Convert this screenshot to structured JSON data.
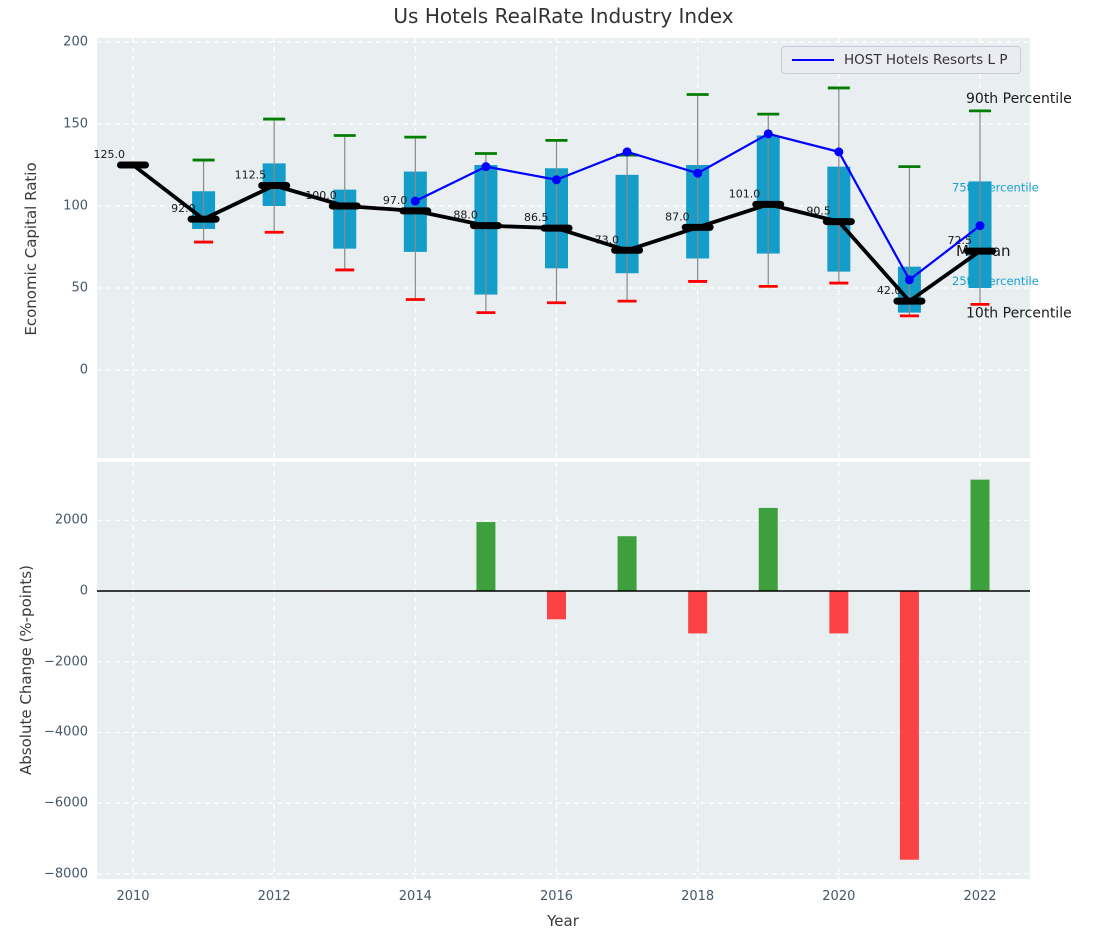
{
  "title": "Us Hotels RealRate Industry Index",
  "legend": {
    "label": "HOST Hotels Resorts L P"
  },
  "colors": {
    "axes_background": "#e9eef1",
    "grid": "#ffffff",
    "box_fill": "#159dc9",
    "whisker_line": "#8a8a8a",
    "p90_cap": "#007d00",
    "p10_cap": "#ff0000",
    "median": "#000000",
    "host_line": "#0000ff",
    "bar_positive": "#3da03d",
    "bar_negative": "#fb4244",
    "cyan_label": "#17a0cd",
    "black_label": "#1a1a1a",
    "tick_text": "#44576b"
  },
  "chart_data": [
    {
      "type": "box",
      "title": "Us Hotels RealRate Industry Index",
      "ylabel": "Economic Capital Ratio",
      "x": [
        2010,
        2011,
        2012,
        2013,
        2014,
        2015,
        2016,
        2017,
        2018,
        2019,
        2020,
        2021,
        2022
      ],
      "xticks": [
        [
          2010,
          "2010"
        ],
        [
          2012,
          "2012"
        ],
        [
          2014,
          "2014"
        ],
        [
          2016,
          "2016"
        ],
        [
          2018,
          "2018"
        ],
        [
          2020,
          "2020"
        ],
        [
          2022,
          "2022"
        ]
      ],
      "yticks": [
        [
          200,
          "200"
        ],
        [
          150,
          "150"
        ],
        [
          100,
          "100"
        ],
        [
          50,
          "50"
        ],
        [
          0,
          "0"
        ]
      ],
      "ylim": [
        -53.7,
        202.4
      ],
      "grid": true,
      "legend_position": "upper right",
      "median": [
        125.0,
        92.0,
        112.5,
        100.0,
        97.0,
        88.0,
        86.5,
        73.0,
        87.0,
        101.0,
        90.5,
        42.0,
        72.5
      ],
      "median_labels": [
        "125.0",
        "92.0",
        "112.5",
        "100.0",
        "97.0",
        "88.0",
        "86.5",
        "73.0",
        "87.0",
        "101.0",
        "90.5",
        "42.0",
        "72.5"
      ],
      "q1": [
        null,
        86,
        100,
        74,
        72,
        46,
        62,
        59,
        68,
        71,
        60,
        35,
        50
      ],
      "q3": [
        null,
        109,
        126,
        110,
        121,
        125,
        123,
        119,
        125,
        143,
        124,
        63,
        115
      ],
      "p10": [
        null,
        78,
        84,
        61,
        43,
        35,
        41,
        42,
        54,
        51,
        53,
        33,
        40
      ],
      "p90": [
        null,
        128,
        153,
        143,
        142,
        132,
        140,
        131,
        168,
        156,
        172,
        124,
        158
      ],
      "series": [
        {
          "name": "HOST Hotels Resorts L P",
          "values": [
            null,
            null,
            null,
            null,
            103,
            124,
            116,
            133,
            120,
            144,
            133,
            55,
            88
          ]
        }
      ],
      "right_labels": [
        {
          "text": "90th Percentile",
          "value": 166,
          "style": "black",
          "x": 966
        },
        {
          "text": "75th Percentile",
          "value": 112,
          "style": "cyan",
          "x": 952
        },
        {
          "text": "Median",
          "value": 72.5,
          "style": "black",
          "x": 956
        },
        {
          "text": "25th Percentile",
          "value": 55,
          "style": "cyan",
          "x": 952
        },
        {
          "text": "10th Percentile",
          "value": 35,
          "style": "black",
          "x": 966
        }
      ]
    },
    {
      "type": "bar",
      "ylabel": "Absolute Change (%-points)",
      "xlabel": "Year",
      "x": [
        2010,
        2011,
        2012,
        2013,
        2014,
        2015,
        2016,
        2017,
        2018,
        2019,
        2020,
        2021,
        2022
      ],
      "values": [
        null,
        null,
        null,
        null,
        null,
        1950,
        -800,
        1550,
        -1200,
        2350,
        -1200,
        -7600,
        3150
      ],
      "xticks": [
        [
          2010,
          "2010"
        ],
        [
          2012,
          "2012"
        ],
        [
          2014,
          "2014"
        ],
        [
          2016,
          "2016"
        ],
        [
          2018,
          "2018"
        ],
        [
          2020,
          "2020"
        ],
        [
          2022,
          "2022"
        ]
      ],
      "yticks": [
        [
          2000,
          "2000"
        ],
        [
          0,
          "0"
        ],
        [
          -2000,
          "−2000"
        ],
        [
          -4000,
          "−4000"
        ],
        [
          -6000,
          "−6000"
        ],
        [
          -8000,
          "−8000"
        ]
      ],
      "ylim": [
        -8150,
        3660
      ],
      "grid": true
    }
  ]
}
